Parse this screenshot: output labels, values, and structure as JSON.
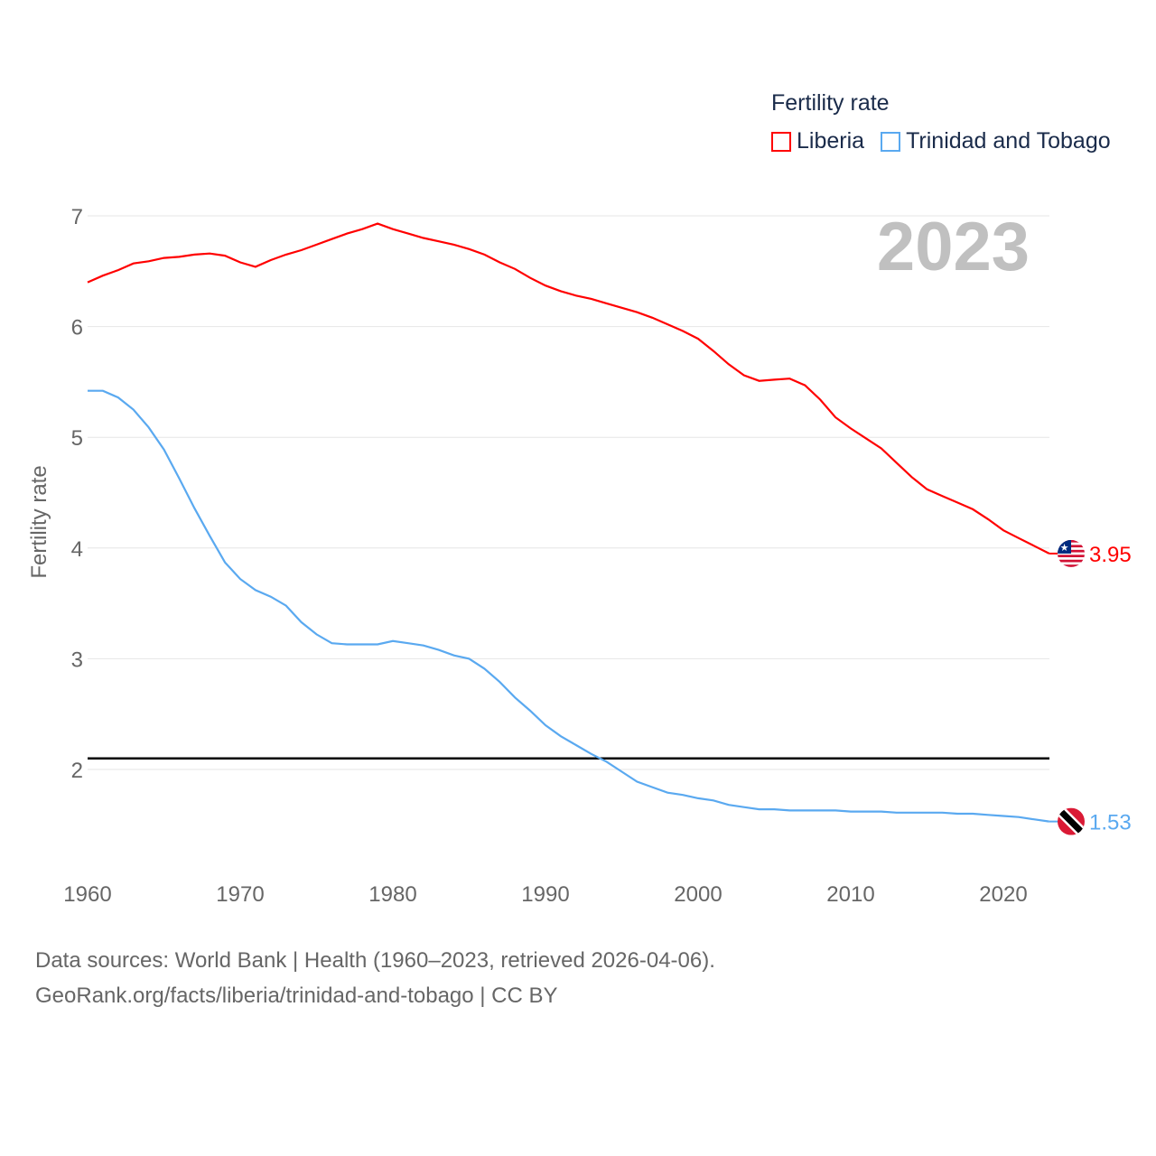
{
  "chart_data": {
    "type": "line",
    "title": "Fertility rate",
    "ylabel": "Fertility rate",
    "xlabel": "",
    "year_label": "2023",
    "ylim": [
      1.2,
      7.2
    ],
    "xlim": [
      1960,
      2023
    ],
    "yticks": [
      "2",
      "3",
      "4",
      "5",
      "6",
      "7"
    ],
    "xticks": [
      "1960",
      "1970",
      "1980",
      "1990",
      "2000",
      "2010",
      "2020"
    ],
    "reference_line": 2.1,
    "legend_placement": "top-right",
    "x": [
      1960,
      1961,
      1962,
      1963,
      1964,
      1965,
      1966,
      1967,
      1968,
      1969,
      1970,
      1971,
      1972,
      1973,
      1974,
      1975,
      1976,
      1977,
      1978,
      1979,
      1980,
      1981,
      1982,
      1983,
      1984,
      1985,
      1986,
      1987,
      1988,
      1989,
      1990,
      1991,
      1992,
      1993,
      1994,
      1995,
      1996,
      1997,
      1998,
      1999,
      2000,
      2001,
      2002,
      2003,
      2004,
      2005,
      2006,
      2007,
      2008,
      2009,
      2010,
      2011,
      2012,
      2013,
      2014,
      2015,
      2016,
      2017,
      2018,
      2019,
      2020,
      2021,
      2022,
      2023
    ],
    "series": [
      {
        "name": "Liberia",
        "color": "#ff0000",
        "end_label": "3.95",
        "values": [
          6.4,
          6.46,
          6.51,
          6.57,
          6.59,
          6.62,
          6.63,
          6.65,
          6.66,
          6.64,
          6.58,
          6.54,
          6.6,
          6.65,
          6.69,
          6.74,
          6.79,
          6.84,
          6.88,
          6.93,
          6.88,
          6.84,
          6.8,
          6.77,
          6.74,
          6.7,
          6.65,
          6.58,
          6.52,
          6.44,
          6.37,
          6.32,
          6.28,
          6.25,
          6.21,
          6.17,
          6.13,
          6.08,
          6.02,
          5.96,
          5.89,
          5.78,
          5.66,
          5.56,
          5.51,
          5.52,
          5.53,
          5.47,
          5.34,
          5.18,
          5.08,
          4.99,
          4.9,
          4.77,
          4.64,
          4.53,
          4.47,
          4.41,
          4.35,
          4.26,
          4.16,
          4.09,
          4.02,
          3.95
        ]
      },
      {
        "name": "Trinidad and Tobago",
        "color": "#5aa9f0",
        "end_label": "1.53",
        "values": [
          5.42,
          5.42,
          5.36,
          5.25,
          5.09,
          4.89,
          4.63,
          4.36,
          4.11,
          3.87,
          3.72,
          3.62,
          3.56,
          3.48,
          3.33,
          3.22,
          3.14,
          3.13,
          3.13,
          3.13,
          3.16,
          3.14,
          3.12,
          3.08,
          3.03,
          3.0,
          2.91,
          2.79,
          2.65,
          2.53,
          2.4,
          2.3,
          2.22,
          2.14,
          2.07,
          1.98,
          1.89,
          1.84,
          1.79,
          1.77,
          1.74,
          1.72,
          1.68,
          1.66,
          1.64,
          1.64,
          1.63,
          1.63,
          1.63,
          1.63,
          1.62,
          1.62,
          1.62,
          1.61,
          1.61,
          1.61,
          1.61,
          1.6,
          1.6,
          1.59,
          1.58,
          1.57,
          1.55,
          1.53
        ]
      }
    ]
  },
  "footer": {
    "line1": "Data sources: World Bank | Health (1960–2023, retrieved 2026-04-06).",
    "line2": "GeoRank.org/facts/liberia/trinidad-and-tobago | CC BY"
  }
}
